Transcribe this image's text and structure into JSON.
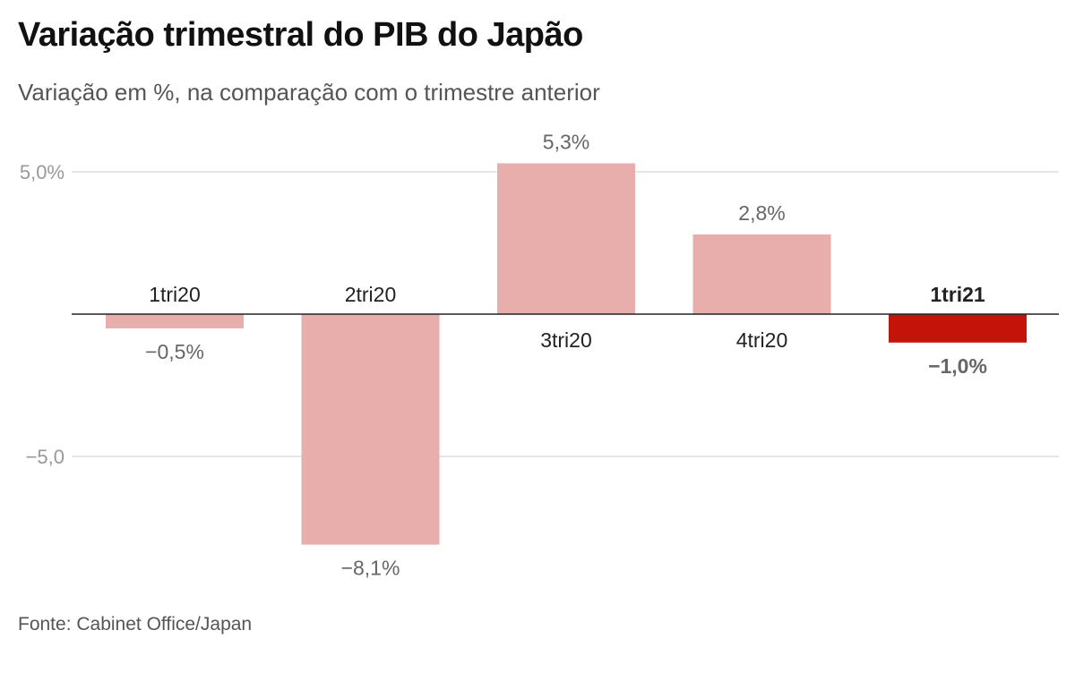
{
  "title": "Variação trimestral do PIB do Japão",
  "subtitle": "Variação em %, na comparação com o trimestre anterior",
  "source": "Fonte: Cabinet Office/Japan",
  "colors": {
    "bar": "#e8aeab",
    "highlight": "#c4140a",
    "grid": "#dddddd",
    "axis": "#222222",
    "tick_text": "#999999",
    "value_text": "#666666",
    "category_text": "#222222"
  },
  "chart_data": {
    "type": "bar",
    "categories": [
      "1tri20",
      "2tri20",
      "3tri20",
      "4tri20",
      "1tri21"
    ],
    "values": [
      -0.5,
      -8.1,
      5.3,
      2.8,
      -1.0
    ],
    "value_labels": [
      "−0,5%",
      "−8,1%",
      "5,3%",
      "2,8%",
      "−1,0%"
    ],
    "highlight_index": 4,
    "ylim": [
      -9.0,
      6.0
    ],
    "yticks": [
      {
        "value": 5,
        "label": "5,0%"
      },
      {
        "value": -5,
        "label": "−5,0"
      }
    ],
    "grid": true,
    "title": "Variação trimestral do PIB do Japão",
    "xlabel": "",
    "ylabel": ""
  }
}
